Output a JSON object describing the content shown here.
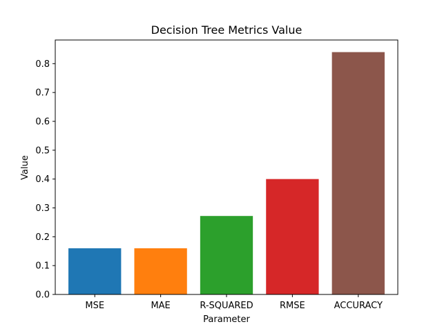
{
  "chart_data": {
    "type": "bar",
    "title": "Decision Tree Metrics Value",
    "xlabel": "Parameter",
    "ylabel": "Value",
    "categories": [
      "MSE",
      "MAE",
      "R-SQUARED",
      "RMSE",
      "ACCURACY"
    ],
    "values": [
      0.16,
      0.16,
      0.272,
      0.4,
      0.84
    ],
    "colors": [
      "#1f77b4",
      "#ff7f0e",
      "#2ca02c",
      "#d62728",
      "#8c564b"
    ],
    "ylim": [
      0,
      0.882
    ],
    "yticks": [
      0.0,
      0.1,
      0.2,
      0.3,
      0.4,
      0.5,
      0.6,
      0.7,
      0.8
    ],
    "ytick_labels": [
      "0.0",
      "0.1",
      "0.2",
      "0.3",
      "0.4",
      "0.5",
      "0.6",
      "0.7",
      "0.8"
    ],
    "grid": false,
    "legend": "none"
  }
}
